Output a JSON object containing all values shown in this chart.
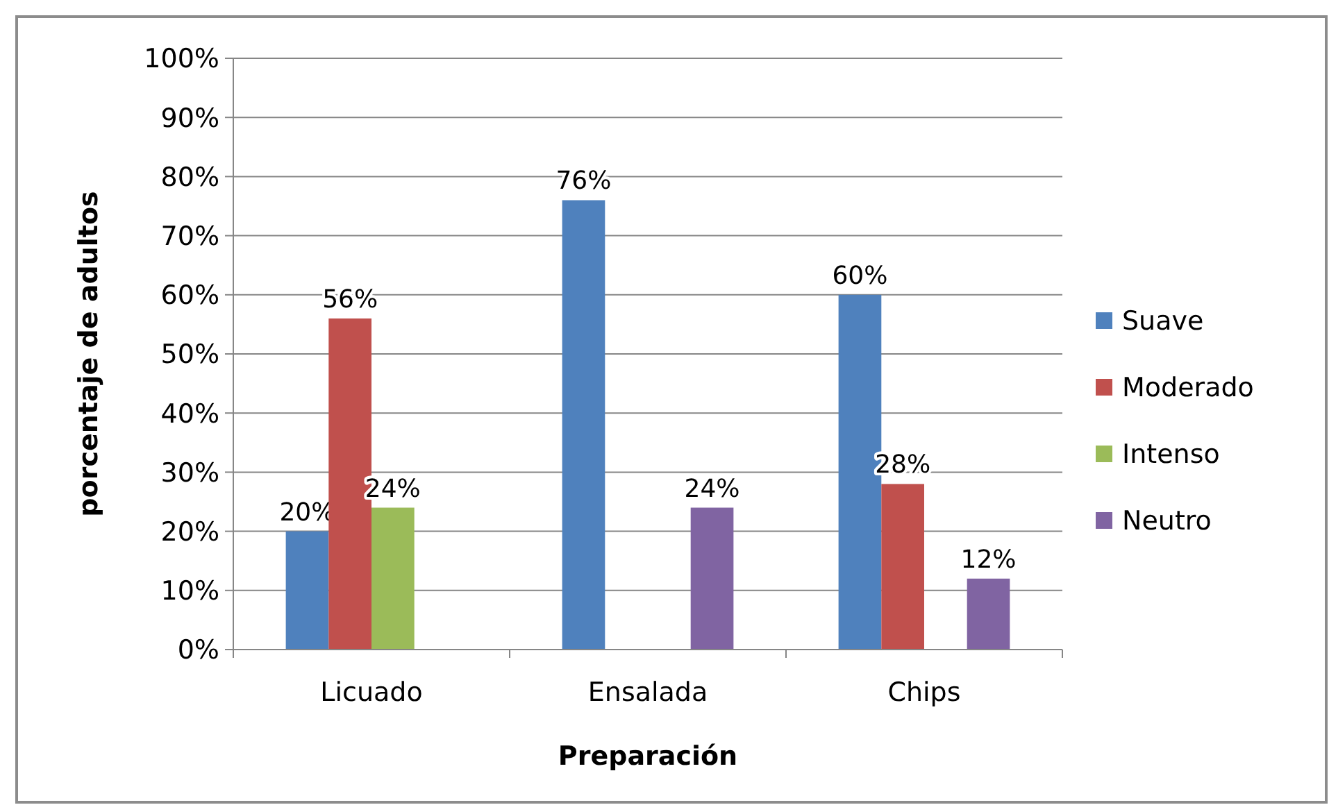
{
  "chart_data": {
    "type": "bar",
    "xlabel": "Preparación",
    "ylabel": "porcentaje de adultos",
    "categories": [
      "Licuado",
      "Ensalada",
      "Chips"
    ],
    "series": [
      {
        "name": "Suave",
        "color": "#4f81bd",
        "values": [
          20,
          76,
          60
        ],
        "value_labels": [
          "20%",
          "76%",
          "60%"
        ]
      },
      {
        "name": "Moderado",
        "color": "#c0504d",
        "values": [
          56,
          null,
          28
        ],
        "value_labels": [
          "56%",
          null,
          "28%"
        ]
      },
      {
        "name": "Intenso",
        "color": "#9bbb59",
        "values": [
          24,
          null,
          null
        ],
        "value_labels": [
          "24%",
          null,
          null
        ]
      },
      {
        "name": "Neutro",
        "color": "#8064a2",
        "values": [
          null,
          24,
          12
        ],
        "value_labels": [
          null,
          "24%",
          "12%"
        ]
      }
    ],
    "ylim": [
      0,
      100
    ],
    "yticks": [
      {
        "value": 0,
        "label": "0%"
      },
      {
        "value": 10,
        "label": "10%"
      },
      {
        "value": 20,
        "label": "20%"
      },
      {
        "value": 30,
        "label": "30%"
      },
      {
        "value": 40,
        "label": "40%"
      },
      {
        "value": 50,
        "label": "50%"
      },
      {
        "value": 60,
        "label": "60%"
      },
      {
        "value": 70,
        "label": "70%"
      },
      {
        "value": 80,
        "label": "80%"
      },
      {
        "value": 90,
        "label": "90%"
      },
      {
        "value": 100,
        "label": "100%"
      }
    ],
    "grid": "y",
    "legend": "right"
  }
}
